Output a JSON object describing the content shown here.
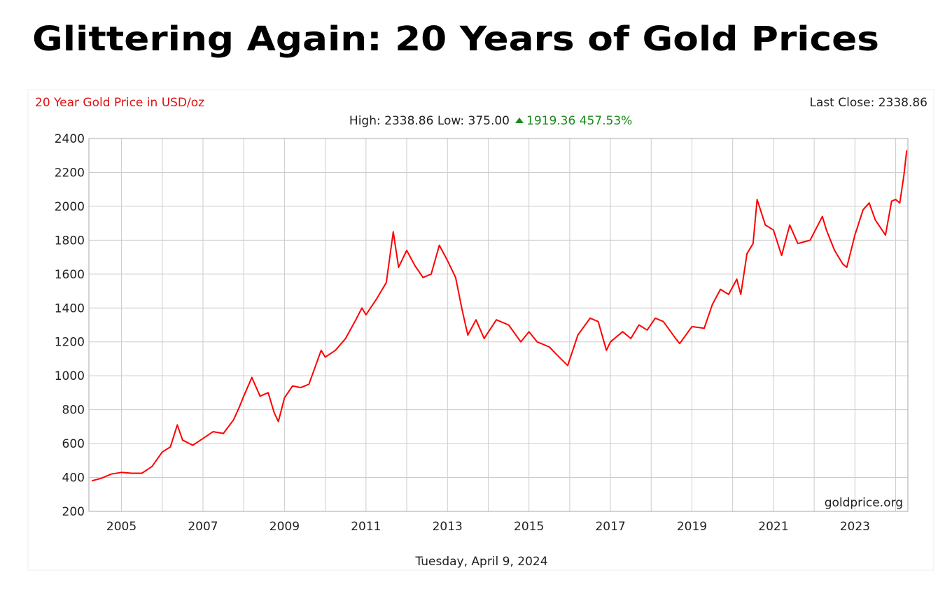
{
  "title": "Glittering Again: 20 Years of Gold Prices",
  "chart_data": {
    "type": "line",
    "subtitle": "20 Year Gold Price in USD/oz",
    "last_close": "Last Close: 2338.86",
    "high_low": "High: 2338.86 Low: 375.00",
    "change": "1919.36 457.53%",
    "source": "goldprice.org",
    "date": "Tuesday, April 9, 2024",
    "color": "#ff0000",
    "grid": true,
    "xlim": [
      2004.2,
      2024.3
    ],
    "xticks": [
      2005,
      2007,
      2009,
      2011,
      2013,
      2015,
      2017,
      2019,
      2021,
      2023
    ],
    "xgrid": [
      2005,
      2006,
      2007,
      2008,
      2009,
      2010,
      2011,
      2012,
      2013,
      2014,
      2015,
      2016,
      2017,
      2018,
      2019,
      2020,
      2021,
      2022,
      2023,
      2024
    ],
    "ylim": [
      200,
      2400
    ],
    "yticks": [
      200,
      400,
      600,
      800,
      1000,
      1200,
      1400,
      1600,
      1800,
      2000,
      2200,
      2400
    ],
    "x": [
      2004.27,
      2004.5,
      2004.75,
      2005.0,
      2005.25,
      2005.5,
      2005.75,
      2006.0,
      2006.2,
      2006.37,
      2006.5,
      2006.75,
      2007.0,
      2007.25,
      2007.5,
      2007.75,
      2007.9,
      2008.0,
      2008.2,
      2008.4,
      2008.6,
      2008.75,
      2008.85,
      2009.0,
      2009.2,
      2009.4,
      2009.6,
      2009.9,
      2010.0,
      2010.25,
      2010.5,
      2010.75,
      2010.9,
      2011.0,
      2011.25,
      2011.5,
      2011.67,
      2011.8,
      2012.0,
      2012.2,
      2012.4,
      2012.6,
      2012.8,
      2013.0,
      2013.2,
      2013.35,
      2013.5,
      2013.7,
      2013.9,
      2014.2,
      2014.5,
      2014.8,
      2015.0,
      2015.2,
      2015.5,
      2015.7,
      2015.95,
      2016.2,
      2016.5,
      2016.7,
      2016.9,
      2017.0,
      2017.3,
      2017.5,
      2017.7,
      2017.9,
      2018.1,
      2018.3,
      2018.6,
      2018.7,
      2019.0,
      2019.3,
      2019.5,
      2019.7,
      2019.9,
      2020.1,
      2020.2,
      2020.35,
      2020.5,
      2020.6,
      2020.8,
      2021.0,
      2021.2,
      2021.4,
      2021.6,
      2021.9,
      2022.2,
      2022.3,
      2022.5,
      2022.7,
      2022.8,
      2023.0,
      2023.2,
      2023.35,
      2023.5,
      2023.75,
      2023.9,
      2024.0,
      2024.1,
      2024.2,
      2024.27
    ],
    "values": [
      380,
      395,
      420,
      430,
      425,
      425,
      465,
      550,
      580,
      710,
      620,
      590,
      630,
      670,
      660,
      740,
      820,
      880,
      990,
      880,
      900,
      780,
      730,
      870,
      940,
      930,
      950,
      1150,
      1110,
      1150,
      1220,
      1330,
      1400,
      1360,
      1450,
      1550,
      1850,
      1640,
      1740,
      1650,
      1580,
      1600,
      1770,
      1680,
      1580,
      1400,
      1240,
      1330,
      1220,
      1330,
      1300,
      1200,
      1260,
      1200,
      1170,
      1120,
      1060,
      1240,
      1340,
      1320,
      1150,
      1200,
      1260,
      1220,
      1300,
      1270,
      1340,
      1320,
      1220,
      1190,
      1290,
      1280,
      1420,
      1510,
      1480,
      1570,
      1480,
      1720,
      1780,
      2040,
      1890,
      1860,
      1710,
      1890,
      1780,
      1800,
      1940,
      1860,
      1740,
      1660,
      1640,
      1830,
      1980,
      2020,
      1920,
      1830,
      2030,
      2040,
      2020,
      2180,
      2330
    ]
  }
}
